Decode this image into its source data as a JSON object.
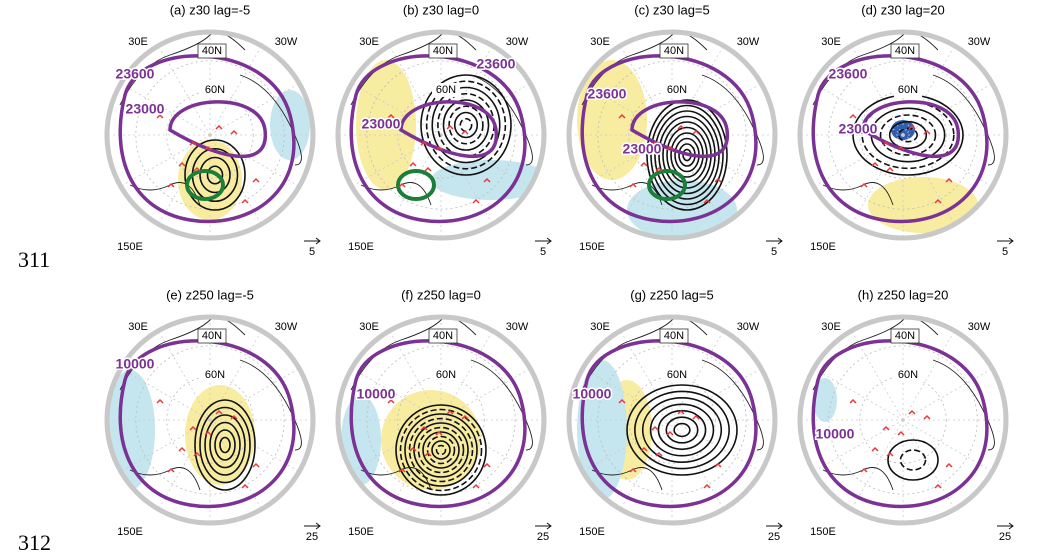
{
  "line_numbers": [
    "311",
    "312"
  ],
  "panels": [
    {
      "title": "(a) z30 lag=-5",
      "lon_labels": [
        "30E",
        "30W",
        "150E"
      ],
      "lat_labels": [
        "40N",
        "60N"
      ],
      "contour_labels": [
        "23600",
        "23000"
      ],
      "vector_scale": "5"
    },
    {
      "title": "(b) z30 lag=0",
      "lon_labels": [
        "30E",
        "30W",
        "150E"
      ],
      "lat_labels": [
        "40N",
        "60N"
      ],
      "contour_labels": [
        "23600",
        "23000"
      ],
      "vector_scale": "5"
    },
    {
      "title": "(c) z30 lag=5",
      "lon_labels": [
        "30E",
        "30W",
        "150E"
      ],
      "lat_labels": [
        "40N",
        "60N"
      ],
      "contour_labels": [
        "23600",
        "23000"
      ],
      "vector_scale": "5"
    },
    {
      "title": "(d) z30 lag=20",
      "lon_labels": [
        "30E",
        "30W",
        "150E"
      ],
      "lat_labels": [
        "40N",
        "60N"
      ],
      "contour_labels": [
        "23600",
        "23000"
      ],
      "vector_scale": "5"
    },
    {
      "title": "(e) z250 lag=-5",
      "lon_labels": [
        "30E",
        "30W",
        "150E"
      ],
      "lat_labels": [
        "40N",
        "60N"
      ],
      "contour_labels": [
        "10000"
      ],
      "vector_scale": "25"
    },
    {
      "title": "(f) z250 lag=0",
      "lon_labels": [
        "30E",
        "30W",
        "150E"
      ],
      "lat_labels": [
        "40N",
        "60N"
      ],
      "contour_labels": [
        "10000"
      ],
      "vector_scale": "25"
    },
    {
      "title": "(g) z250 lag=5",
      "lon_labels": [
        "30E",
        "30W",
        "150E"
      ],
      "lat_labels": [
        "40N",
        "60N"
      ],
      "contour_labels": [
        "10000"
      ],
      "vector_scale": "25"
    },
    {
      "title": "(h) z250 lag=20",
      "lon_labels": [
        "30E",
        "30W",
        "150E"
      ],
      "lat_labels": [
        "40N",
        "60N"
      ],
      "contour_labels": [
        "10000"
      ],
      "vector_scale": "25"
    }
  ]
}
